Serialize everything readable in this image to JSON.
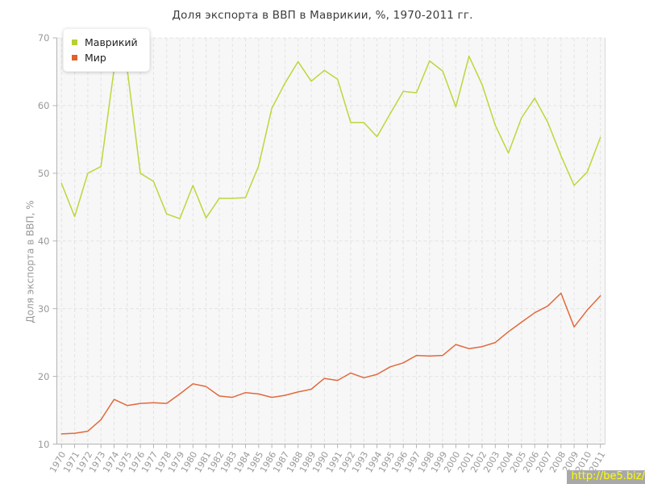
{
  "chart_data": {
    "type": "line",
    "title": "Доля экспорта в ВВП в Маврикии, %, 1970-2011 гг.",
    "ylabel": "Доля экспорта в ВВП, %",
    "xlabel": "",
    "ylim": [
      10,
      70
    ],
    "yticks": [
      10,
      20,
      30,
      40,
      50,
      60,
      70
    ],
    "grid": "dashed",
    "legend_position": "top-left",
    "x": [
      1970,
      1971,
      1972,
      1973,
      1974,
      1975,
      1976,
      1977,
      1978,
      1979,
      1980,
      1981,
      1982,
      1983,
      1984,
      1985,
      1986,
      1987,
      1988,
      1989,
      1990,
      1991,
      1992,
      1993,
      1994,
      1995,
      1996,
      1997,
      1998,
      1999,
      2000,
      2001,
      2002,
      2003,
      2004,
      2005,
      2006,
      2007,
      2008,
      2009,
      2010,
      2011
    ],
    "series": [
      {
        "name": "Маврикий",
        "color": "#bdd63b",
        "values": [
          48.5,
          43.6,
          50.0,
          51.0,
          65.4,
          65.4,
          50.0,
          48.8,
          44.0,
          43.3,
          48.2,
          43.4,
          46.3,
          46.3,
          46.4,
          51.1,
          59.6,
          63.3,
          66.5,
          63.6,
          65.2,
          63.9,
          57.5,
          57.5,
          55.4,
          58.8,
          62.1,
          61.9,
          66.6,
          65.1,
          59.8,
          67.3,
          63.1,
          57.1,
          53.0,
          58.2,
          61.1,
          57.5,
          52.6,
          48.2,
          50.2,
          55.3
        ]
      },
      {
        "name": "Мир",
        "color": "#e2693c",
        "values": [
          11.5,
          11.6,
          11.9,
          13.6,
          16.6,
          15.7,
          16.0,
          16.1,
          16.0,
          17.4,
          18.9,
          18.5,
          17.1,
          16.9,
          17.6,
          17.4,
          16.9,
          17.2,
          17.7,
          18.1,
          19.7,
          19.4,
          20.5,
          19.8,
          20.3,
          21.4,
          22.0,
          23.1,
          23.0,
          23.1,
          24.7,
          24.1,
          24.4,
          25.0,
          26.6,
          28.0,
          29.4,
          30.4,
          32.3,
          27.3,
          29.8,
          31.9
        ]
      }
    ]
  },
  "legend": {
    "items": [
      {
        "label": "Маврикий",
        "color": "#b5d02f"
      },
      {
        "label": "Мир",
        "color": "#e0622b"
      }
    ]
  },
  "watermark": {
    "text": "http://be5.biz/",
    "color": "#ffff00",
    "bg": "#a8a8a8"
  },
  "style": {
    "plot_bg": "#f7f7f7",
    "grid_color": "#e3e3e3",
    "axis_color": "#b3b3b3",
    "tick_label_color": "#999999"
  }
}
